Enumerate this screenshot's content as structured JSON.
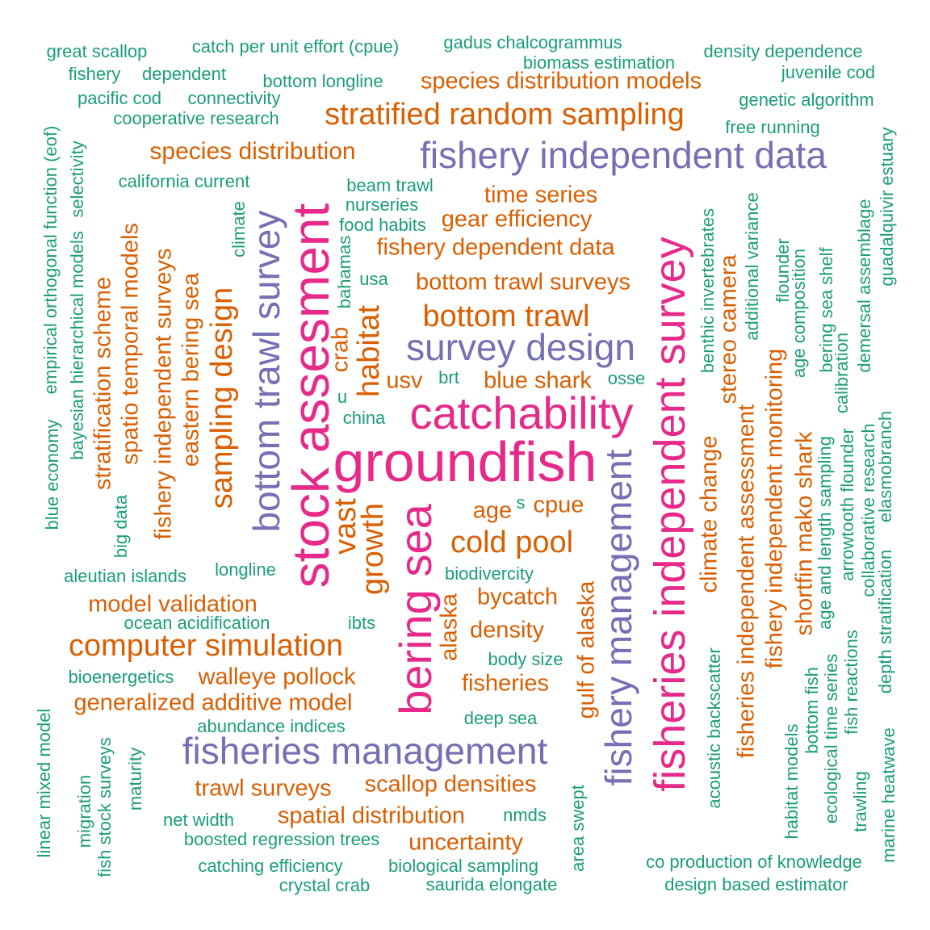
{
  "colors": {
    "green": "#1b9e77",
    "orange": "#d95f02",
    "purple": "#7570b3",
    "pink": "#e7298a"
  },
  "words": {
    "groundfish": "groundfish",
    "stock_assesment": "stock assesment",
    "catchability": "catchability",
    "bering_sea": "bering sea",
    "fisheries_independent_survey": "fisheries independent survey",
    "fishery_independent_data": "fishery independent data",
    "bottom_trawl_survey": "bottom trawl survey",
    "survey_design": "survey design",
    "fisheries_management": "fisheries management",
    "fishery_management": "fishery management",
    "stratified_random_sampling": "stratified random sampling",
    "species_distribution_models": "species distribution models",
    "species_distribution": "species distribution",
    "time_series": "time series",
    "gear_efficiency": "gear efficiency",
    "fishery_dependent_data": "fishery dependent data",
    "bottom_trawl_surveys": "bottom trawl surveys",
    "bottom_trawl": "bottom trawl",
    "habitat": "habitat",
    "usv": "usv",
    "blue_shark": "blue shark",
    "vast": "vast",
    "growth": "growth",
    "age": "age",
    "cpue": "cpue",
    "cold_pool": "cold pool",
    "bycatch": "bycatch",
    "density": "density",
    "fisheries": "fisheries",
    "alaska": "alaska",
    "gulf_of_alaska": "gulf of alaska",
    "sampling_design": "sampling design",
    "eastern_bering_sea": "eastern bering sea",
    "fishery_independent_surveys": "fishery independent surveys",
    "spatio_temporal_models": "spatio temporal models",
    "stratification_scheme": "stratification scheme",
    "model_validation": "model validation",
    "computer_simulation": "computer simulation",
    "walleye_pollock": "walleye pollock",
    "generalized_additive_model": "generalized additive model",
    "trawl_surveys": "trawl surveys",
    "scallop_densities": "scallop densities",
    "spatial_distribution": "spatial distribution",
    "uncertainty": "uncertainty",
    "climate_change": "climate change",
    "stereo_camera": "stereo camera",
    "fisheries_independent_assessment": "fisheries independent assessment",
    "fishery_independent_monitoring": "fishery independent monitoring",
    "shortfin_mako_shark": "shortfin mako shark",
    "great_scallop": "great scallop",
    "catch_per_unit_effort": "catch per unit effort (cpue)",
    "gadus_chalcogrammus": "gadus chalcogrammus",
    "density_dependence": "density dependence",
    "biomass_estimation": "biomass estimation",
    "fishery": "fishery",
    "dependent": "dependent",
    "bottom_longline": "bottom longline",
    "juvenile_cod": "juvenile cod",
    "pacific_cod": "pacific cod",
    "connectivity": "connectivity",
    "genetic_algorithm": "genetic algorithm",
    "cooperative_research": "cooperative research",
    "free_running": "free running",
    "california_current": "california current",
    "beam_trawl": "beam trawl",
    "nurseries": "nurseries",
    "food_habits": "food habits",
    "usa": "usa",
    "brt": "brt",
    "osse": "osse",
    "china": "china",
    "u": "u",
    "s": "s",
    "aleutian_islands": "aleutian islands",
    "longline": "longline",
    "biodivercity": "biodivercity",
    "ocean_acidification": "ocean acidification",
    "ibts": "ibts",
    "bioenergetics": "bioenergetics",
    "body_size": "body size",
    "deep_sea": "deep sea",
    "abundance_indices": "abundance indices",
    "net_width": "net width",
    "nmds": "nmds",
    "boosted_regression_trees": "boosted regression trees",
    "catching_efficiency": "catching efficiency",
    "biological_sampling": "biological sampling",
    "crystal_crab": "crystal crab",
    "saurida_elongate": "saurida elongate",
    "co_production_of_knowledge": "co production of knowledge",
    "design_based_estimator": "design based estimator",
    "empirical_orthogonal_function": "empirical orthogonal function (eof)",
    "selectivity": "selectivity",
    "bayesian_hierarchical_models": "bayesian hierarchical models",
    "blue_economy": "blue economy",
    "big_data": "big data",
    "climate": "climate",
    "bahamas": "bahamas",
    "crab": "crab",
    "benthic_invertebrates": "benthic invertebrates",
    "additional_variance": "additional variance",
    "flounder": "flounder",
    "age_composition": "age composition",
    "bering_sea_shelf": "bering sea shelf",
    "demersal_assemblage": "demersal assemblage",
    "guadalquivir_estuary": "guadalquivir estuary",
    "calibration": "calibration",
    "elasmobranch": "elasmobranch",
    "arrowtooth_flounder": "arrowtooth flounder",
    "collaborative_research": "collaborative research",
    "age_and_length_sampling": "age and length sampling",
    "depth_stratification": "depth stratification",
    "fish_reactions": "fish reactions",
    "ecological_time_series": "ecological time series",
    "bottom_fish": "bottom fish",
    "acoustic_backscatter": "acoustic backscatter",
    "habitat_models": "habitat models",
    "trawling": "trawling",
    "marine_heatwave": "marine heatwave",
    "area_swept": "area swept",
    "linear_mixed_model": "linear mixed model",
    "migration": "migration",
    "fish_stock_surveys": "fish stock surveys",
    "maturity": "maturity"
  }
}
